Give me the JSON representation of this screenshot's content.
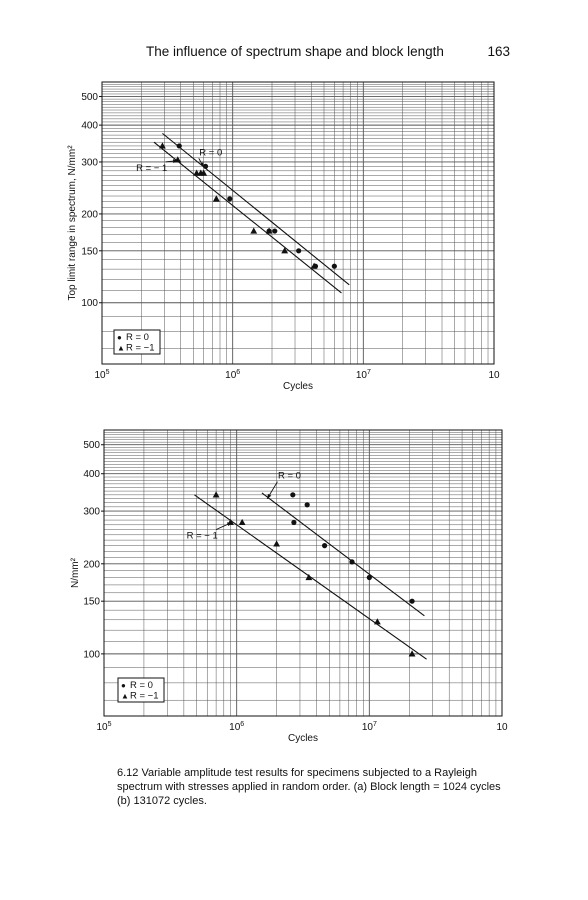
{
  "header": {
    "title": "The influence of spectrum shape and block length",
    "page_number": "163"
  },
  "caption": "6.12 Variable amplitude test results for specimens subjected to a Rayleigh spectrum with stresses applied in random order. (a) Block length = 1024 cycles (b) 131072 cycles.",
  "colors": {
    "ink": "#111111",
    "grid": "#555555",
    "background": "#ffffff"
  },
  "chart_data": [
    {
      "type": "scatter",
      "panel": "a",
      "xscale": "log",
      "yscale": "log",
      "xlabel": "Cycles",
      "ylabel": "Top limit range in spectrum, N/mm²",
      "xlim": [
        100000,
        100000000
      ],
      "ylim": [
        62,
        560
      ],
      "x_ticks": [
        {
          "value": 100000,
          "base": "10",
          "exp": "5"
        },
        {
          "value": 1000000,
          "base": "10",
          "exp": "6"
        },
        {
          "value": 10000000,
          "base": "10",
          "exp": "7"
        },
        {
          "value": 100000000,
          "base": "10",
          "exp": ""
        }
      ],
      "y_ticks": [
        {
          "value": 100,
          "label": "100"
        },
        {
          "value": 150,
          "label": "150"
        },
        {
          "value": 200,
          "label": "200"
        },
        {
          "value": 300,
          "label": "300"
        },
        {
          "value": 400,
          "label": "400"
        },
        {
          "value": 500,
          "label": "500"
        }
      ],
      "grid": true,
      "legend": {
        "position": "bottom-left",
        "entries": [
          {
            "symbol": "●",
            "label": "R = 0"
          },
          {
            "symbol": "▲",
            "label": "R  = −1"
          }
        ]
      },
      "annotations": [
        {
          "text": "R = 0",
          "text_at": [
            680000,
            316
          ],
          "arrow_to": [
            600000,
            288
          ]
        },
        {
          "text": "R = − 1",
          "text_at": [
            240000,
            280
          ],
          "arrow_to": [
            380000,
            303
          ]
        }
      ],
      "series": [
        {
          "name": "R = 0",
          "marker": "circle",
          "x": [
            390000,
            620000,
            950000,
            1900000,
            2100000,
            3200000,
            4300000,
            6000000
          ],
          "y": [
            340,
            290,
            225,
            175,
            175,
            150,
            133,
            133
          ]
        },
        {
          "name": "R = −1",
          "marker": "triangle",
          "x": [
            290000,
            380000,
            530000,
            570000,
            600000,
            750000,
            1450000,
            1900000,
            2500000,
            4200000
          ],
          "y": [
            340,
            305,
            275,
            275,
            275,
            225,
            175,
            175,
            150,
            133
          ]
        }
      ],
      "fit_lines": [
        {
          "series": "R = 0",
          "from": [
            290000,
            375
          ],
          "to": [
            7800000,
            115
          ]
        },
        {
          "series": "R = −1",
          "from": [
            250000,
            350
          ],
          "to": [
            6800000,
            108
          ]
        }
      ]
    },
    {
      "type": "scatter",
      "panel": "b",
      "xscale": "log",
      "yscale": "log",
      "xlabel": "Cycles",
      "ylabel": "N/mm²",
      "xlim": [
        100000,
        100000000
      ],
      "ylim": [
        62,
        560
      ],
      "x_ticks": [
        {
          "value": 100000,
          "base": "10",
          "exp": "5"
        },
        {
          "value": 1000000,
          "base": "10",
          "exp": "6"
        },
        {
          "value": 10000000,
          "base": "10",
          "exp": "7"
        },
        {
          "value": 100000000,
          "base": "10",
          "exp": ""
        }
      ],
      "y_ticks": [
        {
          "value": 100,
          "label": "100"
        },
        {
          "value": 150,
          "label": "150"
        },
        {
          "value": 200,
          "label": "200"
        },
        {
          "value": 300,
          "label": "300"
        },
        {
          "value": 400,
          "label": "400"
        },
        {
          "value": 500,
          "label": "500"
        }
      ],
      "grid": true,
      "legend": {
        "position": "bottom-left",
        "entries": [
          {
            "symbol": "●",
            "label": "R = 0"
          },
          {
            "symbol": "▲",
            "label": "R = −1"
          }
        ]
      },
      "annotations": [
        {
          "text": "R = 0",
          "text_at": [
            2500000,
            385
          ],
          "arrow_to": [
            1700000,
            330
          ]
        },
        {
          "text": "R = − 1",
          "text_at": [
            550000,
            243
          ],
          "arrow_to": [
            920000,
            275
          ]
        }
      ],
      "series": [
        {
          "name": "R = 0",
          "marker": "circle",
          "x": [
            2650000,
            3400000,
            2700000,
            4600000,
            7400000,
            10000000,
            21000000
          ],
          "y": [
            340,
            315,
            275,
            230,
            203,
            180,
            150
          ]
        },
        {
          "name": "R = −1",
          "marker": "triangle",
          "x": [
            700000,
            900000,
            1100000,
            2000000,
            3500000,
            11500000,
            21000000
          ],
          "y": [
            340,
            275,
            275,
            233,
            180,
            128,
            100
          ]
        }
      ],
      "fit_lines": [
        {
          "series": "R = 0",
          "from": [
            1550000,
            345
          ],
          "to": [
            26000000,
            134
          ]
        },
        {
          "series": "R = −1",
          "from": [
            480000,
            340
          ],
          "to": [
            27000000,
            96
          ]
        }
      ]
    }
  ]
}
